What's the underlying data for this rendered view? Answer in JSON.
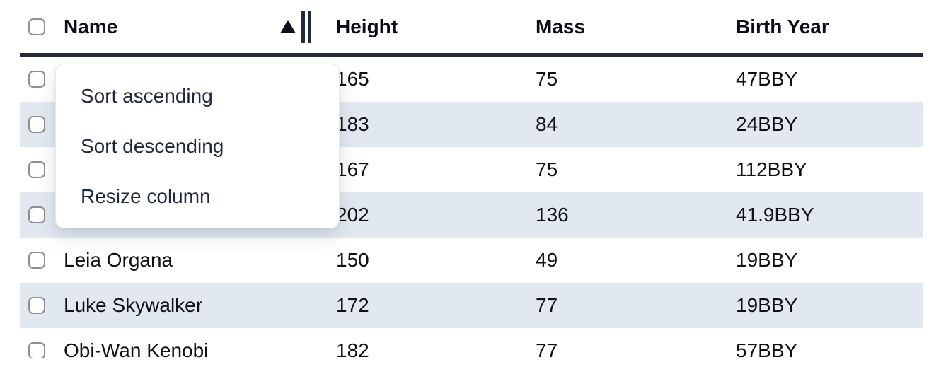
{
  "header": {
    "name": "Name",
    "height": "Height",
    "mass": "Mass",
    "birth_year": "Birth Year",
    "sort_direction": "ascending",
    "sort_icon": "sort-ascending-triangle"
  },
  "menu": {
    "items": [
      {
        "label": "Sort ascending"
      },
      {
        "label": "Sort descending"
      },
      {
        "label": "Resize column"
      }
    ]
  },
  "rows": [
    {
      "name": "",
      "height": "165",
      "mass": "75",
      "birth_year": "47BBY"
    },
    {
      "name": "",
      "height": "183",
      "mass": "84",
      "birth_year": "24BBY"
    },
    {
      "name": "",
      "height": "167",
      "mass": "75",
      "birth_year": "112BBY"
    },
    {
      "name": "",
      "height": "202",
      "mass": "136",
      "birth_year": "41.9BBY"
    },
    {
      "name": "Leia Organa",
      "height": "150",
      "mass": "49",
      "birth_year": "19BBY"
    },
    {
      "name": "Luke Skywalker",
      "height": "172",
      "mass": "77",
      "birth_year": "19BBY"
    },
    {
      "name": "Obi-Wan Kenobi",
      "height": "182",
      "mass": "77",
      "birth_year": "57BBY"
    }
  ],
  "colors": {
    "row_stripe": "#e2e8f0",
    "header_border": "#222b3b",
    "menu_text": "#1e293b",
    "cell_text": "#0e1013"
  }
}
